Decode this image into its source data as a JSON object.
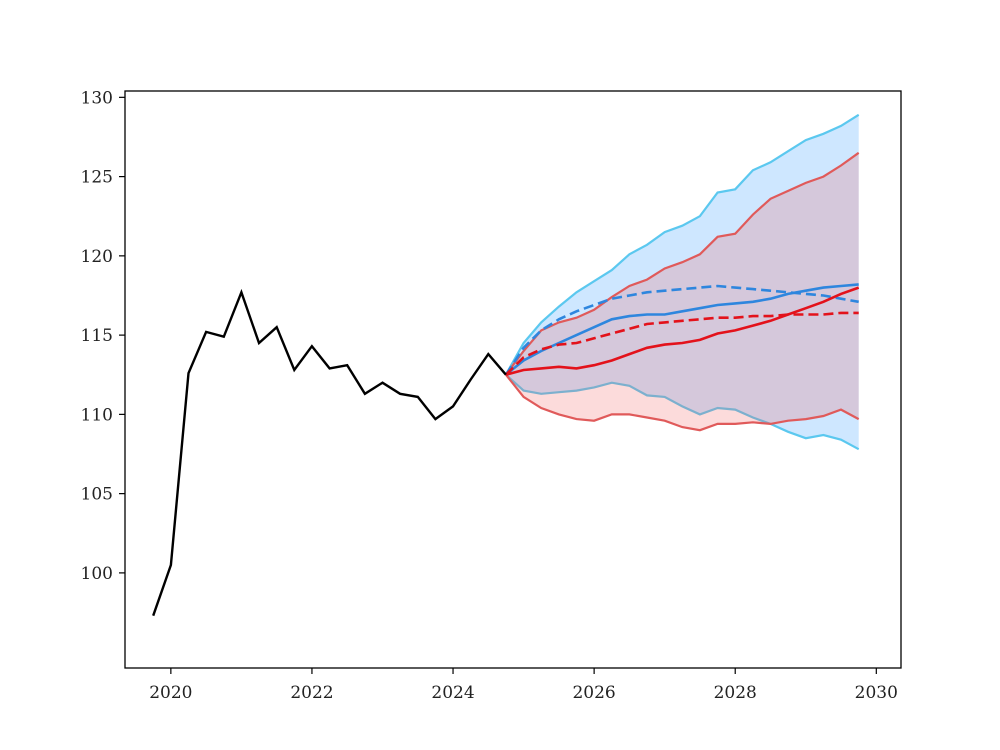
{
  "chart_data": {
    "type": "line",
    "title": "",
    "xlabel": "",
    "ylabel": "",
    "xlim": [
      2019.35,
      2030.35
    ],
    "ylim": [
      94.0,
      130.4
    ],
    "xticks": [
      2020,
      2022,
      2024,
      2026,
      2028,
      2030
    ],
    "yticks": [
      100,
      105,
      110,
      115,
      120,
      125,
      130
    ],
    "grid": false,
    "legend": "none",
    "history": {
      "color": "#000000",
      "points": [
        [
          2019.75,
          97.3
        ],
        [
          2020.0,
          100.5
        ],
        [
          2020.25,
          112.6
        ],
        [
          2020.5,
          115.2
        ],
        [
          2020.75,
          114.9
        ],
        [
          2021.0,
          117.7
        ],
        [
          2021.25,
          114.5
        ],
        [
          2021.5,
          115.5
        ],
        [
          2021.75,
          112.8
        ],
        [
          2022.0,
          114.3
        ],
        [
          2022.25,
          112.9
        ],
        [
          2022.5,
          113.1
        ],
        [
          2022.75,
          111.3
        ],
        [
          2023.0,
          112.0
        ],
        [
          2023.25,
          111.3
        ],
        [
          2023.5,
          111.1
        ],
        [
          2023.75,
          109.7
        ],
        [
          2024.0,
          110.5
        ],
        [
          2024.25,
          112.2
        ],
        [
          2024.5,
          113.8
        ],
        [
          2024.75,
          112.5
        ]
      ]
    },
    "x_forecast": [
      2024.75,
      2025.0,
      2025.25,
      2025.5,
      2025.75,
      2026.0,
      2026.25,
      2026.5,
      2026.75,
      2027.0,
      2027.25,
      2027.5,
      2027.75,
      2028.0,
      2028.25,
      2028.5,
      2028.75,
      2029.0,
      2029.25,
      2029.5,
      2029.75
    ],
    "bands": [
      {
        "color": "#1e90ff",
        "edge_color": "#5bc8ef",
        "upper": [
          112.5,
          114.5,
          115.8,
          116.8,
          117.7,
          118.4,
          119.1,
          120.1,
          120.7,
          121.5,
          121.9,
          122.5,
          124.0,
          124.2,
          125.4,
          125.9,
          126.6,
          127.3,
          127.7,
          128.2,
          128.9
        ],
        "lower": [
          112.5,
          111.5,
          111.3,
          111.4,
          111.5,
          111.7,
          112.0,
          111.8,
          111.2,
          111.1,
          110.5,
          110.0,
          110.4,
          110.3,
          109.8,
          109.4,
          108.9,
          108.5,
          108.7,
          108.4,
          107.8
        ]
      },
      {
        "color": "#f25c5c",
        "edge_color": "#e05a5a",
        "upper": [
          112.5,
          114.0,
          115.3,
          115.8,
          116.1,
          116.6,
          117.4,
          118.1,
          118.5,
          119.2,
          119.6,
          120.1,
          121.2,
          121.4,
          122.6,
          123.6,
          124.1,
          124.6,
          125.0,
          125.7,
          126.5
        ],
        "lower": [
          112.5,
          111.1,
          110.4,
          110.0,
          109.7,
          109.6,
          110.0,
          110.0,
          109.8,
          109.6,
          109.2,
          109.0,
          109.4,
          109.4,
          109.5,
          109.4,
          109.6,
          109.7,
          109.9,
          110.3,
          109.7
        ]
      }
    ],
    "series": [
      {
        "color": "#2e86de",
        "dash": "solid",
        "values": [
          112.5,
          113.4,
          114.0,
          114.5,
          115.0,
          115.5,
          116.0,
          116.2,
          116.3,
          116.3,
          116.5,
          116.7,
          116.9,
          117.0,
          117.1,
          117.3,
          117.6,
          117.8,
          118.0,
          118.1,
          118.2
        ]
      },
      {
        "color": "#2e86de",
        "dash": "dashed",
        "values": [
          112.5,
          114.2,
          115.3,
          116.0,
          116.5,
          116.9,
          117.3,
          117.5,
          117.7,
          117.8,
          117.9,
          118.0,
          118.1,
          118.0,
          117.9,
          117.8,
          117.7,
          117.6,
          117.5,
          117.3,
          117.1
        ]
      },
      {
        "color": "#e3121b",
        "dash": "solid",
        "values": [
          112.5,
          112.8,
          112.9,
          113.0,
          112.9,
          113.1,
          113.4,
          113.8,
          114.2,
          114.4,
          114.5,
          114.7,
          115.1,
          115.3,
          115.6,
          115.9,
          116.3,
          116.7,
          117.1,
          117.6,
          118.0
        ]
      },
      {
        "color": "#e3121b",
        "dash": "dashed",
        "values": [
          112.5,
          113.6,
          114.1,
          114.4,
          114.5,
          114.8,
          115.1,
          115.4,
          115.7,
          115.8,
          115.9,
          116.0,
          116.1,
          116.1,
          116.2,
          116.2,
          116.3,
          116.3,
          116.3,
          116.4,
          116.4
        ]
      }
    ]
  }
}
